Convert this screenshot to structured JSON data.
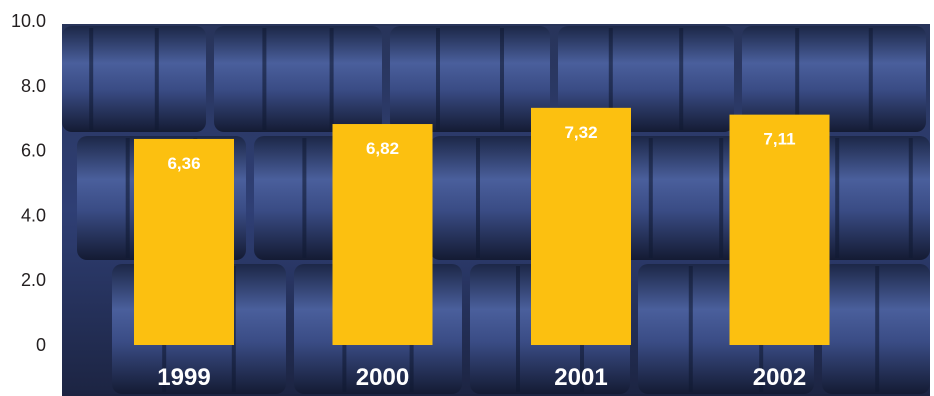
{
  "chart_data": {
    "type": "bar",
    "title": "",
    "xlabel": "",
    "ylabel": "",
    "categories": [
      "1999",
      "2000",
      "2001",
      "2002"
    ],
    "values": [
      6.36,
      6.82,
      7.32,
      7.11
    ],
    "data_labels": [
      "6,36",
      "6,82",
      "7,32",
      "7,11"
    ],
    "ylim": [
      0,
      10
    ],
    "y_ticks": [
      "0",
      "2.0",
      "4.0",
      "6.0",
      "8.0",
      "10.0"
    ],
    "grid": false,
    "legend": "none",
    "bar_color": "#fcc010",
    "background": "photo of stacked dark blue oil barrels"
  }
}
